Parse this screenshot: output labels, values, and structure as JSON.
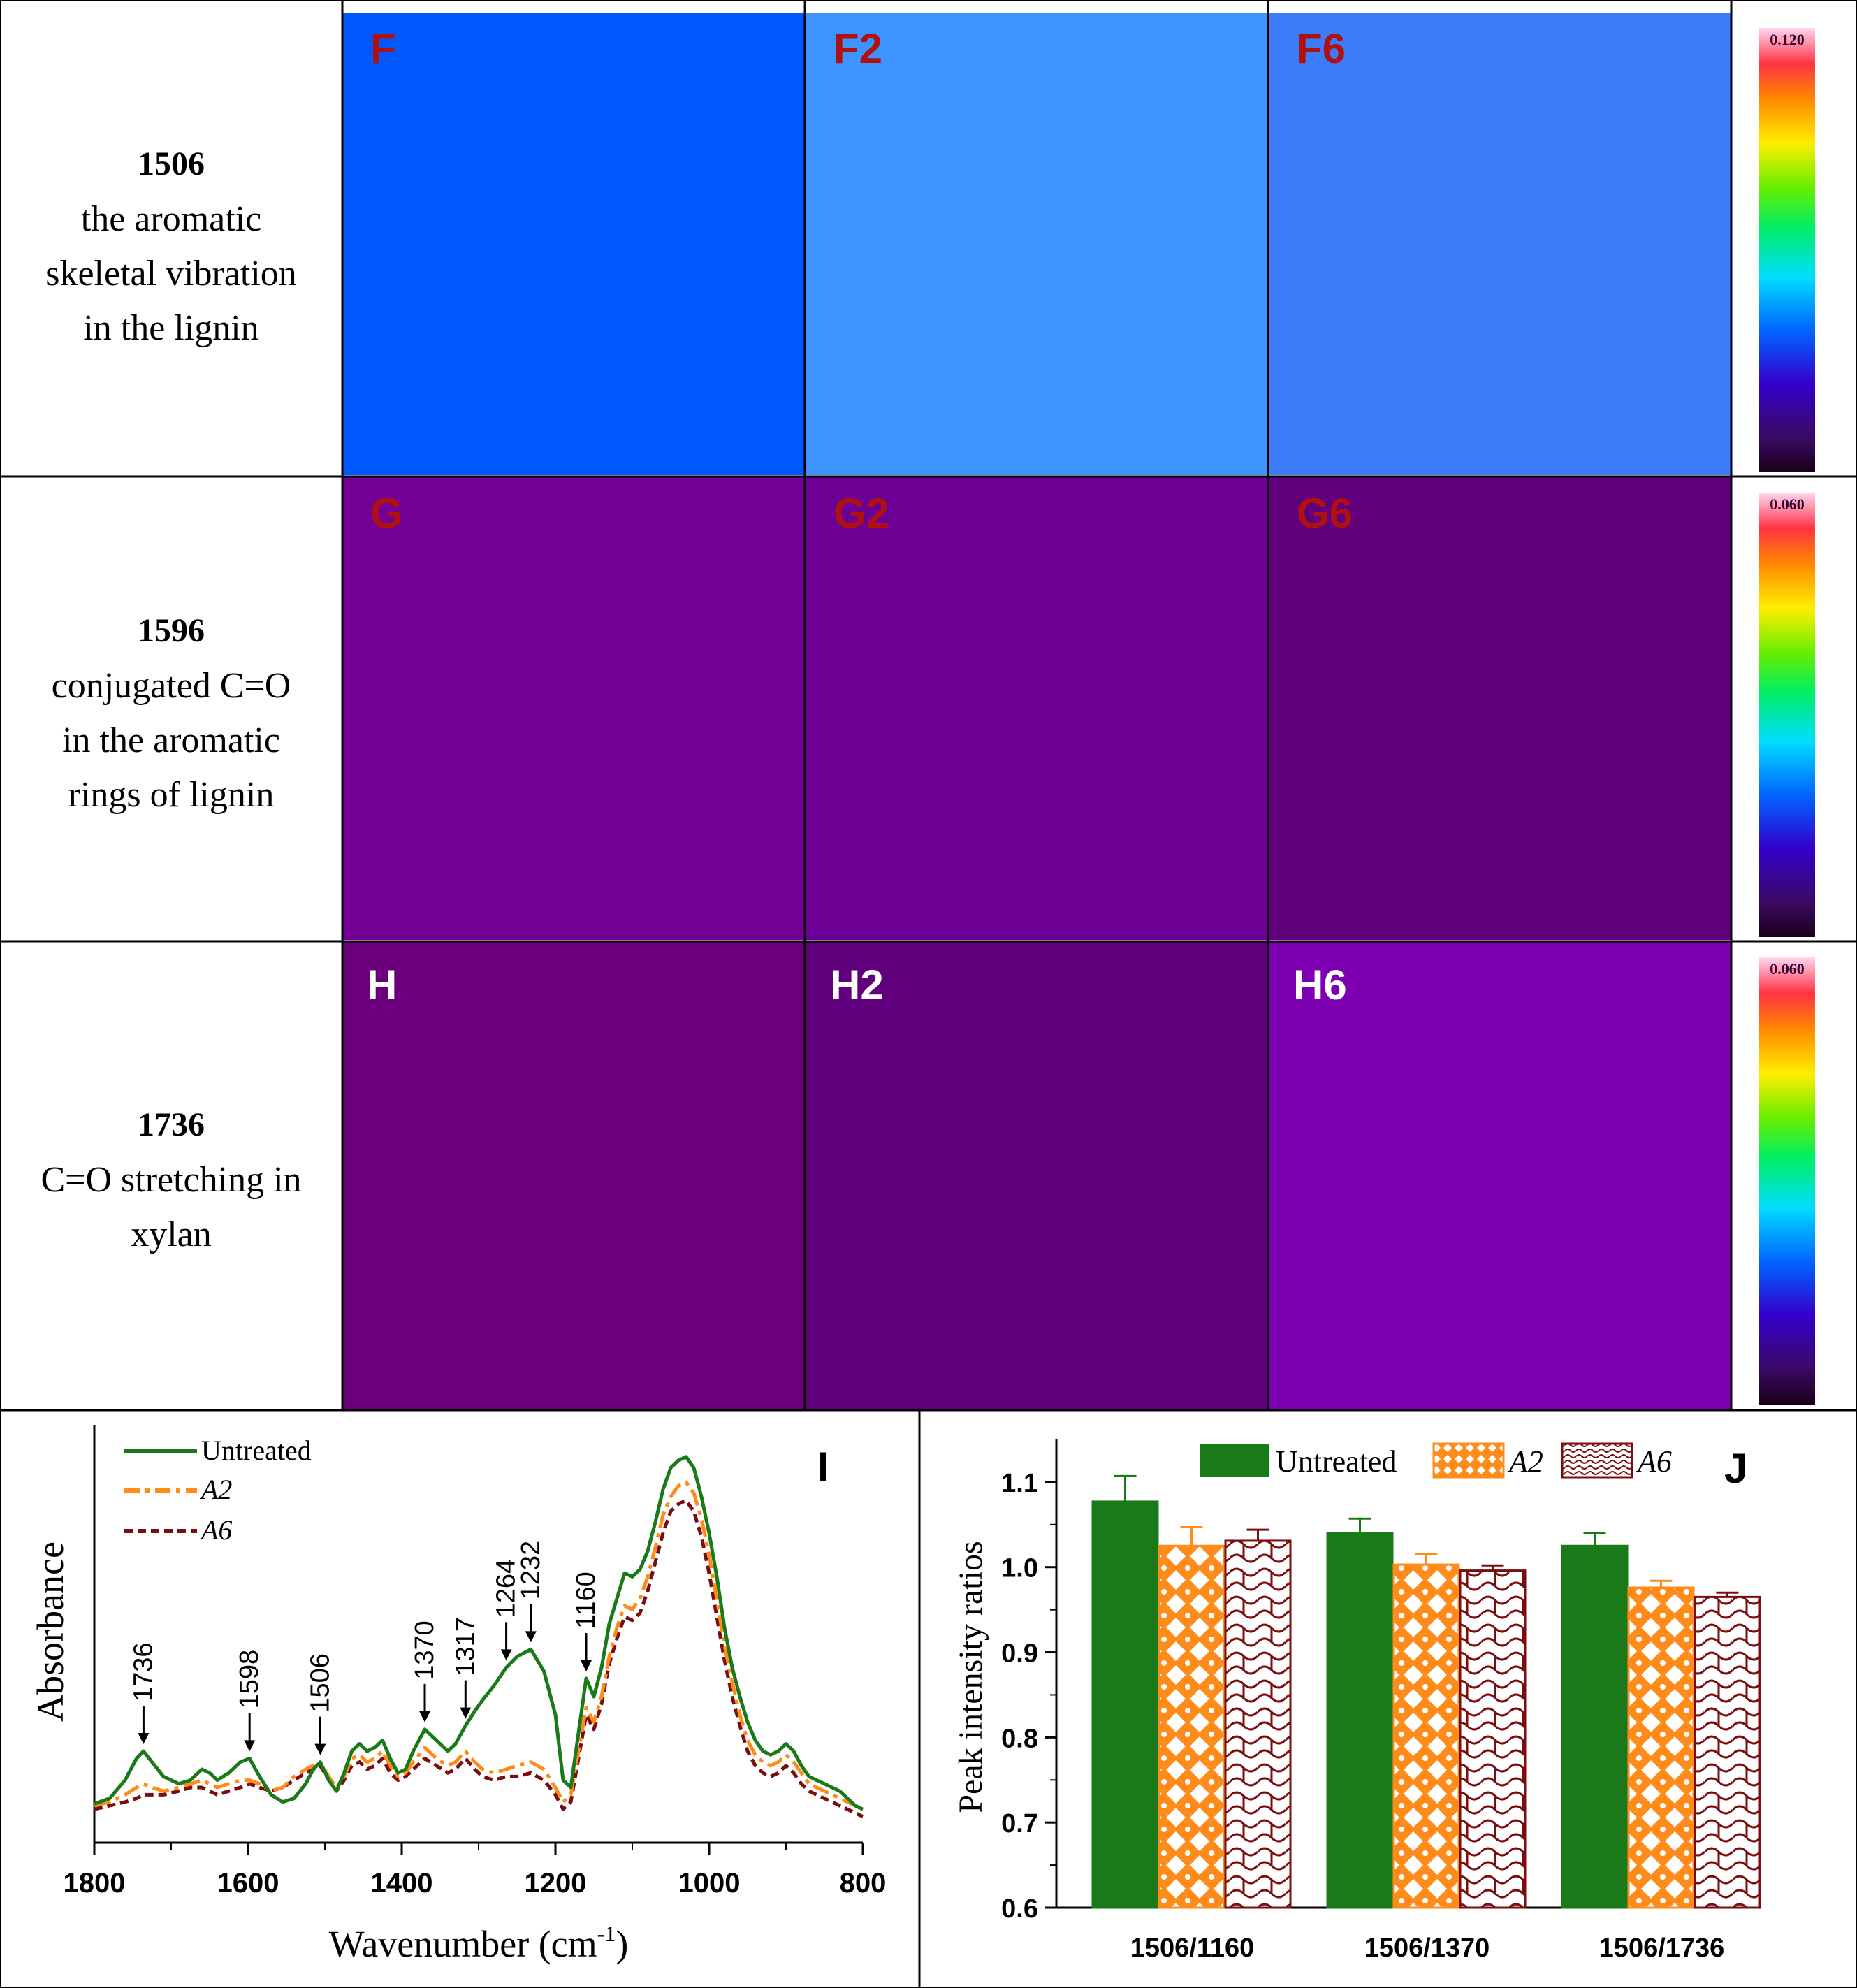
{
  "colors": {
    "untreated": "#1a7a1a",
    "a2": "#ff8c1a",
    "a6": "#7a0d0d",
    "label_red": "#b01010",
    "label_white": "#ffffff"
  },
  "rows": [
    {
      "wavenumber": "1506",
      "desc": [
        "the aromatic",
        "skeletal vibration",
        "in the lignin"
      ],
      "panels": [
        "F",
        "F2",
        "F6"
      ],
      "scale_max": "0.120"
    },
    {
      "wavenumber": "1596",
      "desc": [
        "conjugated C=O",
        "in the aromatic",
        "rings of lignin"
      ],
      "panels": [
        "G",
        "G2",
        "G6"
      ],
      "scale_max": "0.060"
    },
    {
      "wavenumber": "1736",
      "desc": [
        "C=O stretching in",
        "xylan"
      ],
      "panels": [
        "H",
        "H2",
        "H6"
      ],
      "scale_max": "0.060"
    }
  ],
  "chart_data": [
    {
      "type": "line",
      "panel_label": "I",
      "xlabel": "Wavenumber (cm",
      "xlabel_sup": "-1",
      "xlabel_end": ")",
      "ylabel": "Absorbance",
      "xlim": [
        1800,
        800
      ],
      "xticks": [
        "1800",
        "1600",
        "1400",
        "1200",
        "1000",
        "800"
      ],
      "xtick_values": [
        1800,
        1600,
        1400,
        1200,
        1000,
        800
      ],
      "legend": [
        "Untreated",
        "A2",
        "A6"
      ],
      "annotations": [
        "1736",
        "1598",
        "1506",
        "1370",
        "1317",
        "1264",
        "1232",
        "1160"
      ],
      "annotation_x": [
        1736,
        1598,
        1506,
        1370,
        1317,
        1264,
        1232,
        1160
      ],
      "ylim": [
        0,
        1
      ],
      "series": [
        {
          "name": "Untreated",
          "x": [
            1800,
            1780,
            1760,
            1745,
            1736,
            1725,
            1710,
            1690,
            1675,
            1660,
            1650,
            1640,
            1625,
            1610,
            1598,
            1585,
            1570,
            1555,
            1540,
            1525,
            1515,
            1506,
            1495,
            1485,
            1475,
            1465,
            1455,
            1445,
            1435,
            1425,
            1415,
            1405,
            1395,
            1385,
            1370,
            1355,
            1340,
            1330,
            1317,
            1305,
            1295,
            1280,
            1264,
            1250,
            1232,
            1215,
            1200,
            1190,
            1180,
            1170,
            1160,
            1150,
            1140,
            1130,
            1120,
            1110,
            1100,
            1090,
            1080,
            1070,
            1060,
            1050,
            1040,
            1030,
            1020,
            1010,
            1000,
            990,
            980,
            970,
            960,
            950,
            940,
            930,
            920,
            910,
            900,
            890,
            880,
            870,
            860,
            850,
            840,
            830,
            820,
            810,
            800
          ],
          "y": [
            0.055,
            0.07,
            0.12,
            0.18,
            0.2,
            0.17,
            0.13,
            0.11,
            0.12,
            0.15,
            0.14,
            0.12,
            0.14,
            0.17,
            0.18,
            0.13,
            0.08,
            0.06,
            0.07,
            0.11,
            0.15,
            0.17,
            0.12,
            0.09,
            0.14,
            0.2,
            0.22,
            0.2,
            0.21,
            0.23,
            0.18,
            0.14,
            0.15,
            0.2,
            0.26,
            0.23,
            0.2,
            0.22,
            0.27,
            0.31,
            0.34,
            0.38,
            0.43,
            0.46,
            0.48,
            0.42,
            0.3,
            0.12,
            0.1,
            0.25,
            0.4,
            0.35,
            0.43,
            0.55,
            0.62,
            0.69,
            0.68,
            0.7,
            0.75,
            0.83,
            0.92,
            0.98,
            1.0,
            1.01,
            0.98,
            0.9,
            0.8,
            0.68,
            0.54,
            0.43,
            0.35,
            0.28,
            0.23,
            0.2,
            0.19,
            0.2,
            0.22,
            0.2,
            0.16,
            0.13,
            0.12,
            0.11,
            0.1,
            0.09,
            0.07,
            0.05,
            0.04
          ]
        },
        {
          "name": "A2",
          "x": [
            1800,
            1780,
            1760,
            1745,
            1736,
            1725,
            1710,
            1690,
            1675,
            1660,
            1650,
            1640,
            1625,
            1610,
            1598,
            1585,
            1570,
            1555,
            1540,
            1525,
            1515,
            1506,
            1495,
            1485,
            1475,
            1465,
            1455,
            1445,
            1435,
            1425,
            1415,
            1405,
            1395,
            1385,
            1370,
            1355,
            1340,
            1330,
            1317,
            1305,
            1295,
            1280,
            1264,
            1250,
            1232,
            1215,
            1200,
            1190,
            1180,
            1170,
            1160,
            1150,
            1140,
            1130,
            1120,
            1110,
            1100,
            1090,
            1080,
            1070,
            1060,
            1050,
            1040,
            1030,
            1020,
            1010,
            1000,
            990,
            980,
            970,
            960,
            950,
            940,
            930,
            920,
            910,
            900,
            890,
            880,
            870,
            860,
            850,
            840,
            830,
            820,
            810,
            800
          ],
          "y": [
            0.05,
            0.06,
            0.08,
            0.1,
            0.11,
            0.1,
            0.09,
            0.1,
            0.11,
            0.12,
            0.11,
            0.1,
            0.11,
            0.12,
            0.12,
            0.11,
            0.09,
            0.1,
            0.13,
            0.15,
            0.16,
            0.17,
            0.13,
            0.1,
            0.13,
            0.18,
            0.19,
            0.17,
            0.18,
            0.2,
            0.16,
            0.13,
            0.14,
            0.17,
            0.21,
            0.18,
            0.16,
            0.17,
            0.2,
            0.17,
            0.15,
            0.14,
            0.15,
            0.16,
            0.17,
            0.15,
            0.1,
            0.06,
            0.08,
            0.2,
            0.32,
            0.28,
            0.35,
            0.46,
            0.54,
            0.6,
            0.59,
            0.62,
            0.68,
            0.76,
            0.85,
            0.9,
            0.93,
            0.94,
            0.91,
            0.84,
            0.74,
            0.62,
            0.49,
            0.39,
            0.3,
            0.23,
            0.19,
            0.17,
            0.16,
            0.17,
            0.19,
            0.17,
            0.14,
            0.11,
            0.1,
            0.09,
            0.08,
            0.07,
            0.06,
            0.05,
            0.04
          ]
        },
        {
          "name": "A6",
          "x": [
            1800,
            1780,
            1760,
            1745,
            1736,
            1725,
            1710,
            1690,
            1675,
            1660,
            1650,
            1640,
            1625,
            1610,
            1598,
            1585,
            1570,
            1555,
            1540,
            1525,
            1515,
            1506,
            1495,
            1485,
            1475,
            1465,
            1455,
            1445,
            1435,
            1425,
            1415,
            1405,
            1395,
            1385,
            1370,
            1355,
            1340,
            1330,
            1317,
            1305,
            1295,
            1280,
            1264,
            1250,
            1232,
            1215,
            1200,
            1190,
            1180,
            1170,
            1160,
            1150,
            1140,
            1130,
            1120,
            1110,
            1100,
            1090,
            1080,
            1070,
            1060,
            1050,
            1040,
            1030,
            1020,
            1010,
            1000,
            990,
            980,
            970,
            960,
            950,
            940,
            930,
            920,
            910,
            900,
            890,
            880,
            870,
            860,
            850,
            840,
            830,
            820,
            810,
            800
          ],
          "y": [
            0.04,
            0.05,
            0.06,
            0.07,
            0.08,
            0.08,
            0.08,
            0.09,
            0.1,
            0.1,
            0.09,
            0.08,
            0.09,
            0.1,
            0.11,
            0.1,
            0.09,
            0.1,
            0.12,
            0.14,
            0.15,
            0.16,
            0.12,
            0.09,
            0.12,
            0.16,
            0.17,
            0.15,
            0.16,
            0.18,
            0.14,
            0.12,
            0.13,
            0.15,
            0.18,
            0.16,
            0.14,
            0.15,
            0.18,
            0.15,
            0.13,
            0.12,
            0.13,
            0.13,
            0.14,
            0.12,
            0.08,
            0.04,
            0.06,
            0.18,
            0.3,
            0.26,
            0.33,
            0.44,
            0.51,
            0.57,
            0.56,
            0.58,
            0.64,
            0.72,
            0.8,
            0.86,
            0.88,
            0.89,
            0.86,
            0.79,
            0.69,
            0.57,
            0.45,
            0.35,
            0.27,
            0.2,
            0.16,
            0.14,
            0.13,
            0.14,
            0.16,
            0.14,
            0.11,
            0.09,
            0.08,
            0.07,
            0.06,
            0.05,
            0.04,
            0.03,
            0.02
          ]
        }
      ]
    },
    {
      "type": "bar",
      "panel_label": "J",
      "ylabel": "Peak intensity ratios",
      "ylim": [
        0.6,
        1.15
      ],
      "yticks": [
        "0.6",
        "0.7",
        "0.8",
        "0.9",
        "1.0",
        "1.1"
      ],
      "ytick_values": [
        0.6,
        0.7,
        0.8,
        0.9,
        1.0,
        1.1
      ],
      "categories": [
        "1506/1160",
        "1506/1370",
        "1506/1736"
      ],
      "legend": [
        "Untreated",
        "A2",
        "A6"
      ],
      "series": [
        {
          "name": "Untreated",
          "values": [
            1.077,
            1.04,
            1.025
          ],
          "errors": [
            0.03,
            0.017,
            0.015
          ]
        },
        {
          "name": "A2",
          "values": [
            1.025,
            1.003,
            0.976
          ],
          "errors": [
            0.022,
            0.012,
            0.008
          ]
        },
        {
          "name": "A6",
          "values": [
            1.031,
            0.996,
            0.965
          ],
          "errors": [
            0.013,
            0.006,
            0.005
          ]
        }
      ]
    }
  ]
}
